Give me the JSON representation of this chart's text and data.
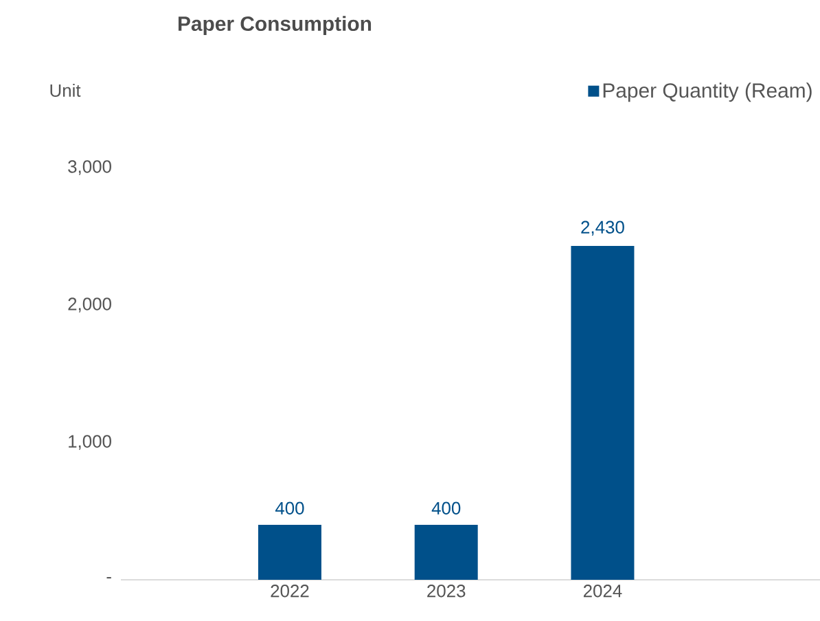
{
  "chart_data": {
    "type": "bar",
    "title": "Paper Consumption",
    "ylabel": "Unit",
    "categories": [
      "2022",
      "2023",
      "2024"
    ],
    "series": [
      {
        "name": "Paper Quantity (Ream)",
        "color": "#00508a",
        "values": [
          400,
          400,
          2430
        ],
        "value_labels": [
          "400",
          "400",
          "2,430"
        ]
      }
    ],
    "ylim": [
      0,
      3000
    ],
    "yticks": [
      {
        "value": 0,
        "label": "-"
      },
      {
        "value": 1000,
        "label": "1,000"
      },
      {
        "value": 2000,
        "label": "2,000"
      },
      {
        "value": 3000,
        "label": "3,000"
      }
    ],
    "grid": false,
    "legend": "top right"
  }
}
